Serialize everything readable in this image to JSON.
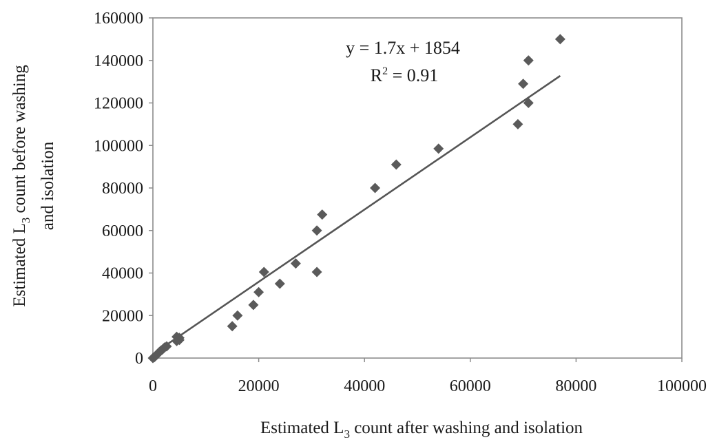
{
  "chart_data": {
    "type": "scatter",
    "xlabel": {
      "pre": "Estimated L",
      "sub": "3",
      "post": " count after washing and isolation"
    },
    "ylabel": {
      "line1": {
        "pre": "Estimated L",
        "sub": "3",
        "post": " count before washing"
      },
      "line2": "and isolation"
    },
    "xlim": [
      0,
      100000
    ],
    "ylim": [
      0,
      160000
    ],
    "x_ticks": [
      0,
      20000,
      40000,
      60000,
      80000,
      100000
    ],
    "y_ticks": [
      0,
      20000,
      40000,
      60000,
      80000,
      100000,
      120000,
      140000,
      160000
    ],
    "x_tick_labels": [
      "0",
      "20000",
      "40000",
      "60000",
      "80000",
      "100000"
    ],
    "y_tick_labels": [
      "0",
      "20000",
      "40000",
      "60000",
      "80000",
      "100000",
      "120000",
      "140000",
      "160000"
    ],
    "grid": false,
    "marker_color": "#5a5a5a",
    "line_color": "#555555",
    "points": [
      {
        "x": 0,
        "y": 0
      },
      {
        "x": 300,
        "y": 500
      },
      {
        "x": 600,
        "y": 1200
      },
      {
        "x": 900,
        "y": 2000
      },
      {
        "x": 1200,
        "y": 2800
      },
      {
        "x": 1500,
        "y": 3500
      },
      {
        "x": 1800,
        "y": 4000
      },
      {
        "x": 2200,
        "y": 5000
      },
      {
        "x": 2600,
        "y": 5500
      },
      {
        "x": 4500,
        "y": 8000
      },
      {
        "x": 4500,
        "y": 10000
      },
      {
        "x": 5000,
        "y": 8500
      },
      {
        "x": 5000,
        "y": 9500
      },
      {
        "x": 15000,
        "y": 15000
      },
      {
        "x": 16000,
        "y": 20000
      },
      {
        "x": 19000,
        "y": 25000
      },
      {
        "x": 20000,
        "y": 31000
      },
      {
        "x": 21000,
        "y": 40500
      },
      {
        "x": 24000,
        "y": 35000
      },
      {
        "x": 27000,
        "y": 44500
      },
      {
        "x": 31000,
        "y": 40500
      },
      {
        "x": 31000,
        "y": 60000
      },
      {
        "x": 32000,
        "y": 67500
      },
      {
        "x": 42000,
        "y": 80000
      },
      {
        "x": 46000,
        "y": 91000
      },
      {
        "x": 54000,
        "y": 98500
      },
      {
        "x": 69000,
        "y": 110000
      },
      {
        "x": 70000,
        "y": 129000
      },
      {
        "x": 71000,
        "y": 120000
      },
      {
        "x": 71000,
        "y": 140000
      },
      {
        "x": 77000,
        "y": 150000
      }
    ],
    "trendline": {
      "slope": 1.7,
      "intercept": 1854,
      "x_start": 0,
      "x_end": 77000
    },
    "equation": {
      "text": "y = 1.7x + 1854"
    },
    "r_squared": {
      "pre": "R",
      "sup": "2",
      "post": " = 0.91"
    }
  }
}
